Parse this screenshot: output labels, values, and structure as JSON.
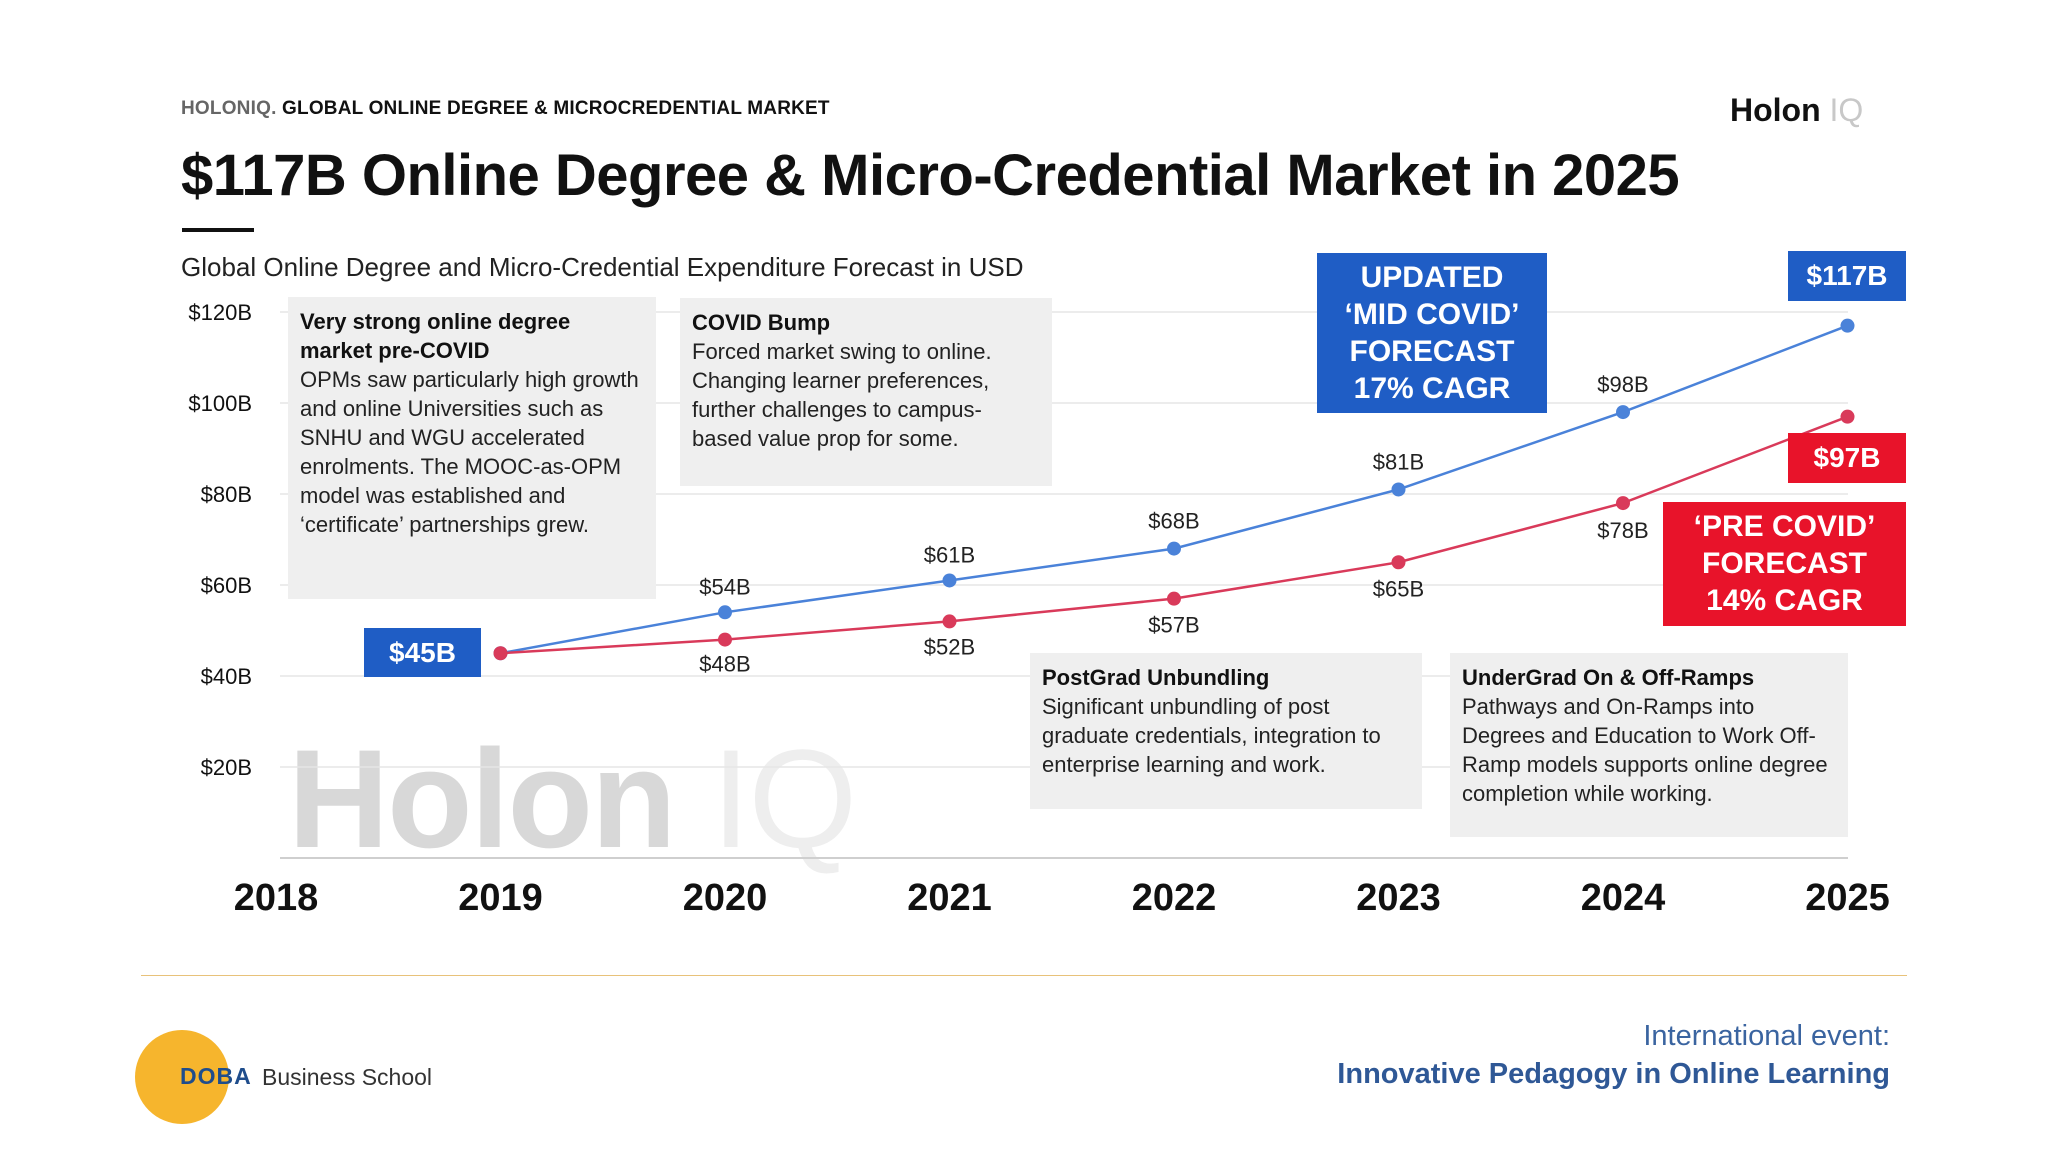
{
  "header": {
    "kicker_brand": "HOLONIQ.",
    "kicker_text": "GLOBAL ONLINE DEGREE & MICROCREDENTIAL MARKET",
    "logo_main": "Holon",
    "logo_iq": "IQ",
    "title": "$117B Online Degree & Micro-Credential Market in 2025",
    "subtitle": "Global Online Degree and Micro-Credential Expenditure Forecast in USD"
  },
  "chart_data": {
    "type": "line",
    "title": "$117B Online Degree & Micro-Credential Market in 2025",
    "subtitle": "Global Online Degree and Micro-Credential Expenditure Forecast in USD",
    "x": [
      "2018",
      "2019",
      "2020",
      "2021",
      "2022",
      "2023",
      "2024",
      "2025"
    ],
    "y_ticks": [
      "$20B",
      "$40B",
      "$60B",
      "$80B",
      "$100B",
      "$120B"
    ],
    "ylim": [
      0,
      120
    ],
    "xlabel": "",
    "ylabel": "",
    "series": [
      {
        "name": "Updated 'Mid COVID' Forecast 17% CAGR",
        "color": "#4a82d9",
        "x": [
          "2019",
          "2020",
          "2021",
          "2022",
          "2023",
          "2024",
          "2025"
        ],
        "values": [
          45,
          54,
          61,
          68,
          81,
          98,
          117
        ],
        "labels": [
          "$45B",
          "$54B",
          "$61B",
          "$68B",
          "$81B",
          "$98B",
          "$117B"
        ]
      },
      {
        "name": "'Pre COVID' Forecast 14% CAGR",
        "color": "#d93a5a",
        "x": [
          "2019",
          "2020",
          "2021",
          "2022",
          "2023",
          "2024",
          "2025"
        ],
        "values": [
          45,
          48,
          52,
          57,
          65,
          78,
          97
        ],
        "labels": [
          "$45B",
          "$48B",
          "$52B",
          "$57B",
          "$65B",
          "$78B",
          "$97B"
        ]
      }
    ],
    "grid": true
  },
  "tags": {
    "start": "$45B",
    "end_blue": "$117B",
    "end_red": "$97B",
    "updated_line1": "UPDATED",
    "updated_line2": "‘MID COVID’",
    "updated_line3": "FORECAST",
    "updated_line4": "17% CAGR",
    "precovid_line1": "‘PRE COVID’",
    "precovid_line2": "FORECAST",
    "precovid_line3": "14% CAGR"
  },
  "notes": {
    "precovid": {
      "heading": "Very strong online degree market pre-COVID",
      "body": "OPMs saw particularly high growth and online Universities such as SNHU and WGU accelerated enrolments. The MOOC-as-OPM model was established and ‘certificate’ partnerships grew."
    },
    "covid": {
      "heading": "COVID Bump",
      "body": "Forced market swing to online. Changing learner preferences, further challenges to campus-based value prop for some."
    },
    "postgrad": {
      "heading": "PostGrad Unbundling",
      "body": "Significant unbundling of post graduate credentials, integration to enterprise learning and work."
    },
    "undergrad": {
      "heading": "UnderGrad On & Off-Ramps",
      "body": "Pathways and On-Ramps into Degrees and Education to Work Off-Ramp models supports online degree completion while working."
    }
  },
  "watermark": {
    "main": "Holon",
    "iq": "IQ"
  },
  "footer": {
    "doba_mark": "DOBA",
    "doba_text": "Business School",
    "event_line1": "International event:",
    "event_line2": "Innovative Pedagogy in Online Learning"
  },
  "colors": {
    "blue_tag": "#1f5dc5",
    "red_tag": "#e8132a",
    "blue_line": "#4a82d9",
    "red_line": "#d93a5a",
    "footer_accent": "#f6b52d"
  }
}
